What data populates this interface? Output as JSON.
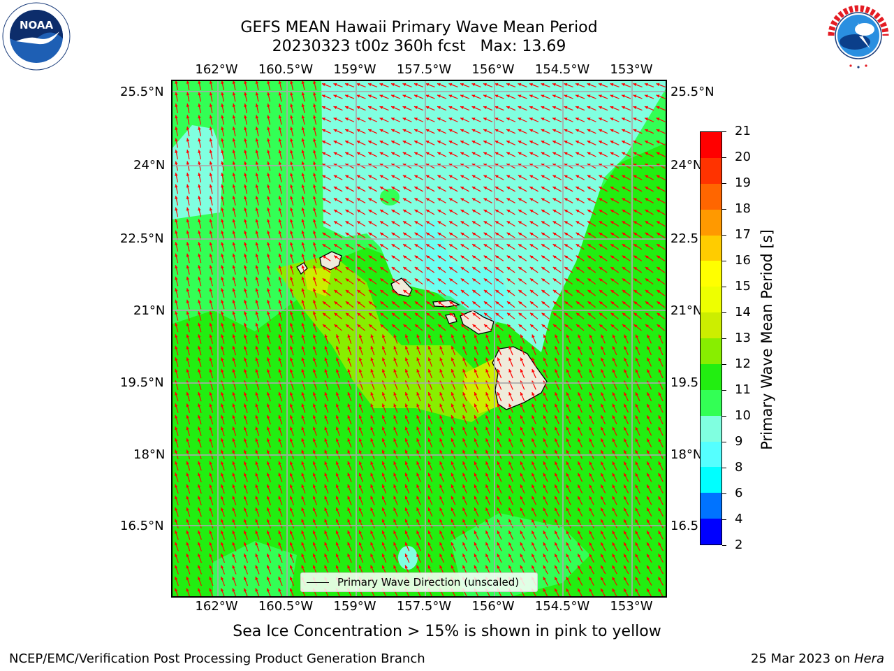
{
  "header": {
    "title_line1": "GEFS MEAN Hawaii Primary Wave Mean Period",
    "title_line2": "20230323 t00z 360h fcst   Max: 13.69"
  },
  "logos": {
    "left": "NOAA",
    "left_ring_text": "NATIONAL OCEANIC AND ATMOSPHERIC ADMINISTRATION · U.S. DEPARTMENT OF COMMERCE",
    "right_ring_text": "NATIONAL WEATHER SERVICE"
  },
  "map": {
    "lon_labels": [
      "162°W",
      "160.5°W",
      "159°W",
      "157.5°W",
      "156°W",
      "154.5°W",
      "153°W"
    ],
    "lat_labels_left": [
      "25.5°N",
      "24°N",
      "22.5°N",
      "21°N",
      "19.5°N",
      "18°N",
      "16.5°N"
    ],
    "lat_labels_right": [
      "25.5°N",
      "24°N",
      "22.5",
      "21°N",
      "19.5",
      "18°N",
      "16.5"
    ],
    "legend_label": "Primary Wave Direction (unscaled)",
    "colors": {
      "land": "#efebdb",
      "period_9_10": "#80ffe0",
      "period_10_11": "#33ff55",
      "period_11_12": "#22ee11",
      "period_12_13": "#88ee00",
      "period_13_14": "#ccee00",
      "arrow": "#ff0000"
    }
  },
  "colorbar": {
    "label": "Primary Wave Mean Period [s]",
    "ticks": [
      "2",
      "4",
      "6",
      "8",
      "9",
      "10",
      "11",
      "12",
      "13",
      "14",
      "15",
      "16",
      "17",
      "18",
      "19",
      "20",
      "21"
    ],
    "colors": [
      "#0000ff",
      "#0073ff",
      "#00ffff",
      "#55ffff",
      "#80ffe0",
      "#33ff55",
      "#22ee11",
      "#88ee00",
      "#ccee00",
      "#eeff00",
      "#ffff00",
      "#ffcc00",
      "#ff9900",
      "#ff6600",
      "#ff3300",
      "#ff0000"
    ]
  },
  "footer": {
    "subtitle": "Sea Ice Concentration > 15% is shown in pink to yellow",
    "left": "NCEP/EMC/Verification Post Processing Product Generation Branch",
    "right_prefix": "25 Mar 2023 on ",
    "right_host": "Hera"
  }
}
